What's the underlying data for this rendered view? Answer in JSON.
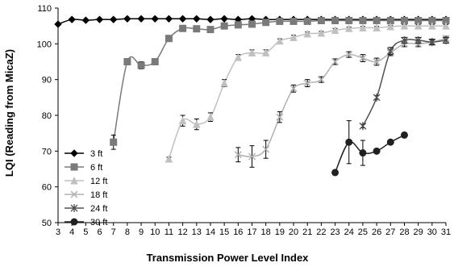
{
  "chart_data": {
    "type": "line",
    "xlabel": "Transmission Power Level Index",
    "ylabel": "LQI (Reading from MicaZ)",
    "xlim": [
      3,
      31
    ],
    "ylim": [
      50,
      110
    ],
    "x_ticks": [
      3,
      4,
      5,
      6,
      7,
      8,
      9,
      10,
      11,
      12,
      13,
      14,
      15,
      16,
      17,
      18,
      19,
      20,
      21,
      22,
      23,
      24,
      25,
      26,
      27,
      28,
      29,
      30,
      31
    ],
    "y_ticks": [
      50,
      60,
      70,
      80,
      90,
      100,
      110
    ],
    "grid": false,
    "legend_position": "left",
    "series": [
      {
        "name": "3 ft",
        "color": "#000000",
        "marker": "diamond",
        "x": [
          3,
          4,
          5,
          6,
          7,
          8,
          9,
          10,
          11,
          12,
          13,
          14,
          15,
          16,
          17,
          18,
          19,
          20,
          21,
          22,
          23,
          24,
          25,
          26,
          27,
          28,
          29,
          30,
          31
        ],
        "y": [
          105.5,
          106.8,
          106.6,
          106.8,
          106.8,
          107,
          107,
          107,
          107,
          107,
          107,
          106.8,
          107,
          106.8,
          107,
          106.8,
          106.8,
          106.8,
          106.8,
          106.8,
          106.8,
          106.8,
          106.8,
          106.8,
          106.8,
          106.8,
          106.8,
          106.8,
          106.8
        ],
        "err": [
          0,
          0,
          0,
          0,
          0,
          0,
          0,
          0,
          0,
          0,
          0,
          0,
          0,
          0,
          0,
          0,
          0,
          0,
          0,
          0,
          0,
          0,
          0,
          0,
          0,
          0,
          0,
          0,
          0
        ]
      },
      {
        "name": "6 ft",
        "color": "#7a7a7a",
        "marker": "square",
        "x": [
          7,
          8,
          9,
          10,
          11,
          12,
          13,
          14,
          15,
          16,
          17,
          18,
          19,
          20,
          21,
          22,
          23,
          24,
          25,
          26,
          27,
          28,
          29,
          30,
          31
        ],
        "y": [
          72.5,
          95,
          94,
          95,
          101.5,
          104.3,
          104.2,
          104,
          105,
          105.3,
          105.5,
          106,
          106.3,
          106.3,
          106.3,
          106.5,
          106.5,
          106.5,
          106.5,
          106.5,
          106.5,
          106.5,
          106.5,
          106.5,
          106.5
        ],
        "err": [
          2,
          0.8,
          1,
          0.8,
          0.6,
          0.5,
          0.6,
          0.6,
          0.5,
          0.5,
          0.5,
          0.5,
          0.4,
          0.4,
          0.4,
          0.4,
          0.4,
          0.4,
          0.4,
          0.4,
          0.4,
          0.4,
          0.4,
          0.4,
          0.4
        ]
      },
      {
        "name": "12 ft",
        "color": "#c0c0c0",
        "marker": "triangle",
        "x": [
          11,
          12,
          13,
          14,
          15,
          16,
          17,
          18,
          19,
          20,
          21,
          22,
          23,
          24,
          25,
          26,
          27,
          28,
          29,
          30,
          31
        ],
        "y": [
          67.8,
          78.5,
          77.5,
          79.5,
          89,
          96.2,
          97.5,
          97.5,
          100.8,
          101.8,
          102.8,
          103,
          103.8,
          104.3,
          104.5,
          104.5,
          104.8,
          105,
          105,
          105,
          105
        ],
        "err": [
          0.5,
          1.5,
          1.5,
          1.2,
          1,
          0.8,
          0.8,
          0.8,
          0.6,
          0.6,
          0.5,
          0.5,
          0.5,
          0.4,
          0.4,
          0.4,
          0.4,
          0.4,
          0.4,
          0.4,
          0.4
        ]
      },
      {
        "name": "18 ft",
        "color": "#b0b0b0",
        "marker": "x",
        "x": [
          16,
          17,
          18,
          19,
          20,
          21,
          22,
          23,
          24,
          25,
          26,
          27,
          28,
          29,
          30,
          31
        ],
        "y": [
          69,
          68.5,
          70.5,
          79.5,
          87.5,
          89,
          90,
          95,
          97,
          96,
          95,
          97.5,
          100,
          100,
          100.5,
          101.5
        ],
        "err": [
          2,
          3,
          2.5,
          1.5,
          1,
          1,
          0.8,
          0.8,
          0.8,
          1,
          1,
          0.8,
          0.8,
          0.8,
          0.6,
          0.6
        ]
      },
      {
        "name": "24 ft",
        "color": "#505050",
        "marker": "asterisk",
        "x": [
          25,
          26,
          27,
          28,
          29,
          30,
          31
        ],
        "y": [
          77,
          85,
          98,
          101,
          101,
          100.5,
          101
        ],
        "err": [
          0.5,
          0.5,
          1,
          0.8,
          0.8,
          0.8,
          0.8
        ]
      },
      {
        "name": "30 ft",
        "color": "#202020",
        "marker": "circle",
        "x": [
          23,
          24,
          25,
          26,
          27,
          28
        ],
        "y": [
          64,
          72.5,
          69.5,
          70,
          72.5,
          74.5
        ],
        "err": [
          0,
          6,
          3.5,
          0,
          0,
          0
        ]
      }
    ]
  }
}
